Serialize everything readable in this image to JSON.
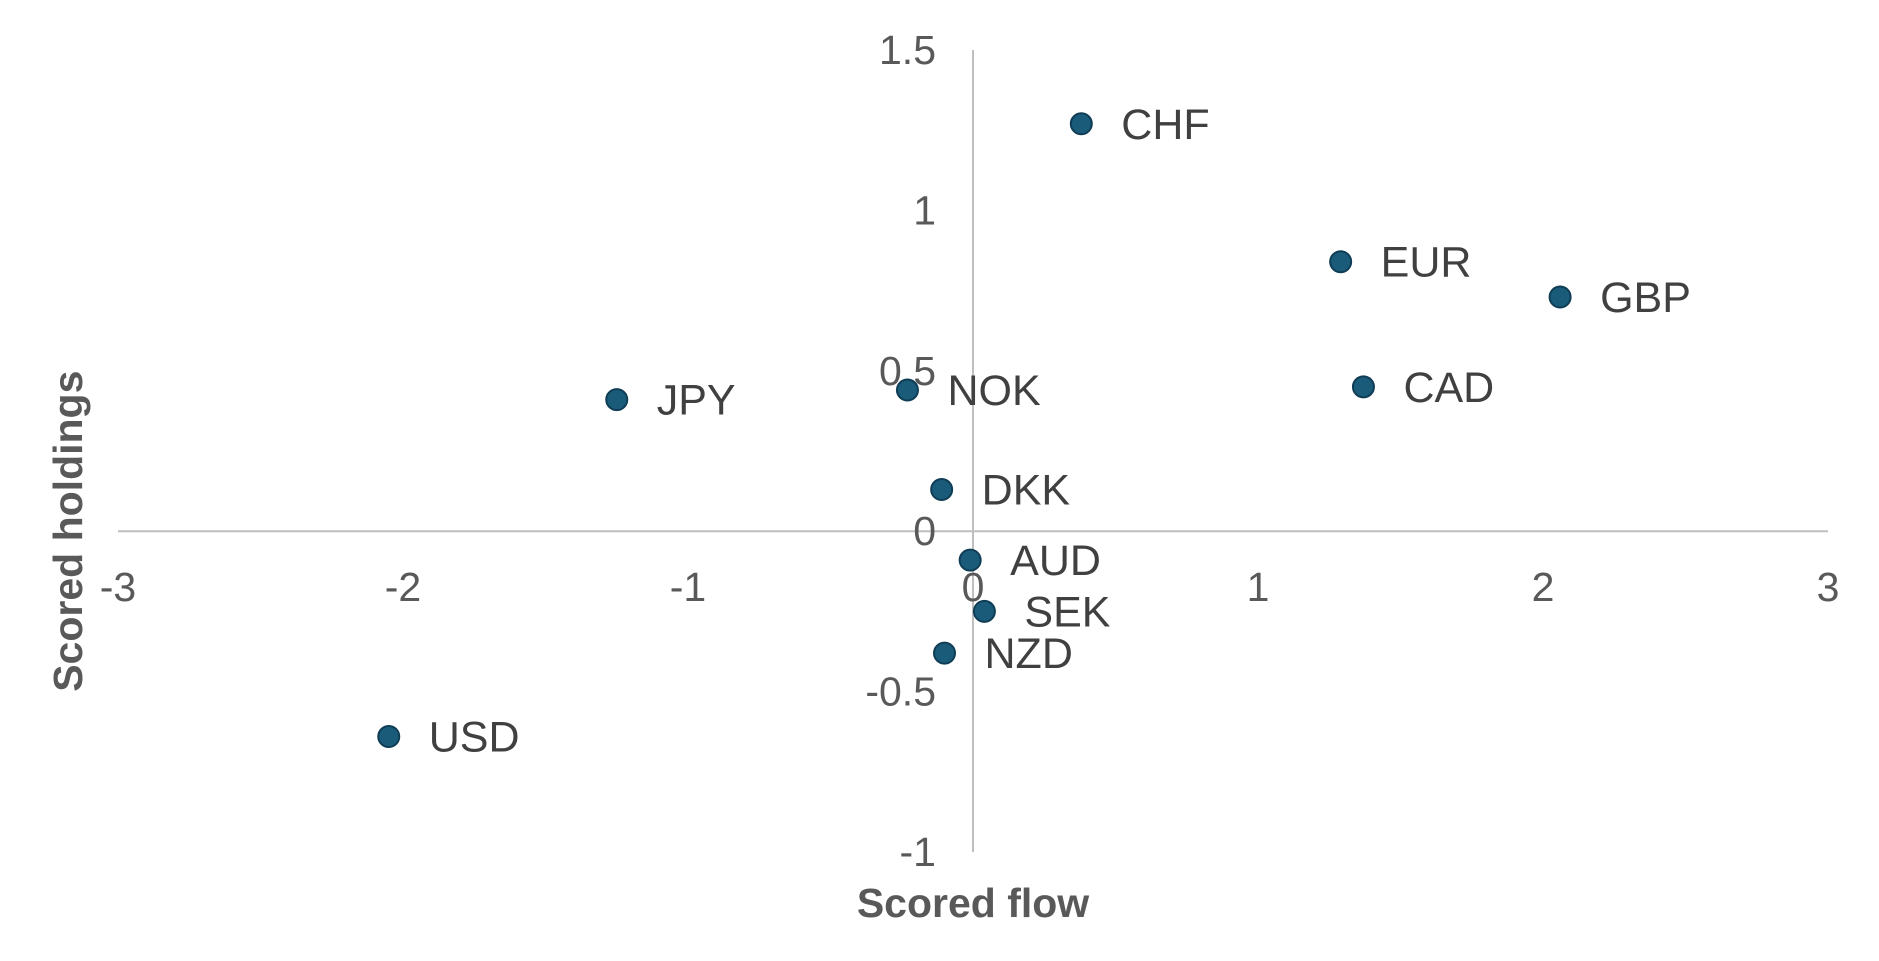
{
  "chart_data": {
    "type": "scatter",
    "title": "",
    "xlabel": "Scored flow",
    "ylabel": "Scored holdings",
    "xlim": [
      -3,
      3
    ],
    "ylim": [
      -1,
      1.5
    ],
    "x_ticks": [
      "-3",
      "-2",
      "-1",
      "0",
      "1",
      "2",
      "3"
    ],
    "y_ticks": [
      "1.5",
      "1",
      "0.5",
      "0",
      "-0.5",
      "-1"
    ],
    "grid": false,
    "legend": "none",
    "marker_color": "#1b5b7a",
    "marker_edge_color": "#0f3d55",
    "axis_color": "#bfbfbf",
    "points": [
      {
        "label": "CHF",
        "x": 0.38,
        "y": 1.27
      },
      {
        "label": "EUR",
        "x": 1.29,
        "y": 0.84
      },
      {
        "label": "GBP",
        "x": 2.06,
        "y": 0.73
      },
      {
        "label": "CAD",
        "x": 1.37,
        "y": 0.45
      },
      {
        "label": "JPY",
        "x": -1.25,
        "y": 0.41
      },
      {
        "label": "NOK",
        "x": -0.23,
        "y": 0.44
      },
      {
        "label": "DKK",
        "x": -0.11,
        "y": 0.13
      },
      {
        "label": "AUD",
        "x": -0.01,
        "y": -0.09
      },
      {
        "label": "SEK",
        "x": 0.04,
        "y": -0.25
      },
      {
        "label": "NZD",
        "x": -0.1,
        "y": -0.38
      },
      {
        "label": "USD",
        "x": -2.05,
        "y": -0.64
      }
    ]
  }
}
